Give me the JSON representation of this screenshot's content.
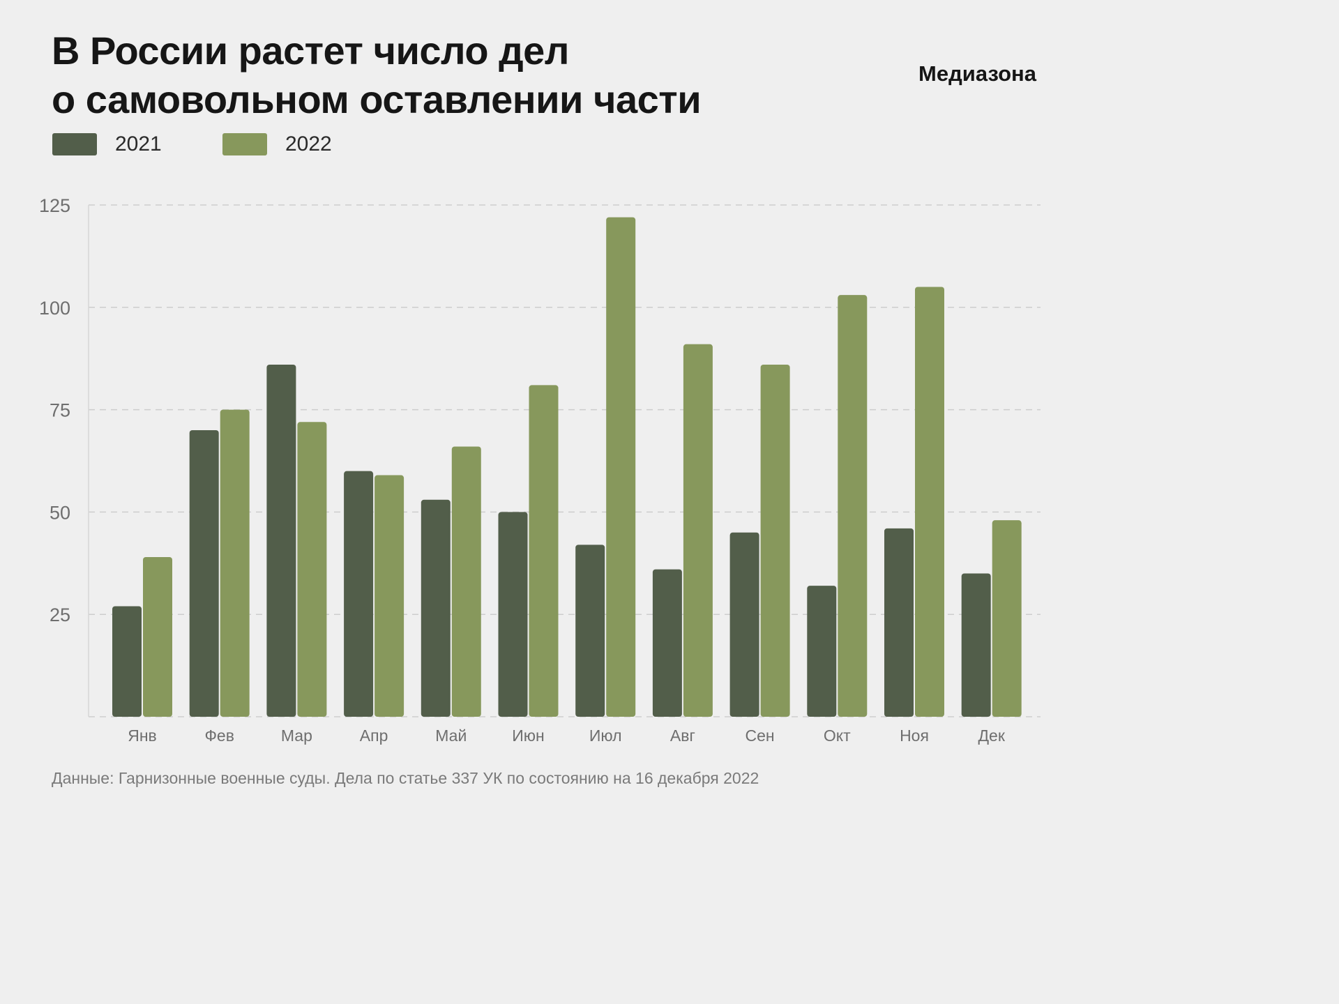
{
  "header": {
    "title_line1": "В России растет число дел",
    "title_line2": "о самовольном оставлении части",
    "brand": "Медиазона"
  },
  "colors": {
    "background": "#efefef",
    "series_2021": "#525e4a",
    "series_2022": "#87985c",
    "grid": "#cdcdcd",
    "tick_text": "#6e6e6e"
  },
  "chart_data": {
    "type": "bar",
    "title": "В России растет число дел о самовольном оставлении части",
    "xlabel": "",
    "ylabel": "",
    "ylim": [
      0,
      125
    ],
    "yticks": [
      25,
      50,
      75,
      100,
      125
    ],
    "grid": true,
    "legend_position": "top-left",
    "categories": [
      "Янв",
      "Фев",
      "Мар",
      "Апр",
      "Май",
      "Июн",
      "Июл",
      "Авг",
      "Сен",
      "Окт",
      "Ноя",
      "Дек"
    ],
    "series": [
      {
        "name": "2021",
        "values": [
          27,
          70,
          86,
          60,
          53,
          50,
          42,
          36,
          45,
          32,
          46,
          35
        ]
      },
      {
        "name": "2022",
        "values": [
          39,
          75,
          72,
          59,
          66,
          81,
          122,
          91,
          86,
          103,
          105,
          48
        ]
      }
    ]
  },
  "footer": {
    "source": "Данные: Гарнизонные военные суды. Дела по статье 337 УК по состоянию на 16 декабря 2022"
  }
}
